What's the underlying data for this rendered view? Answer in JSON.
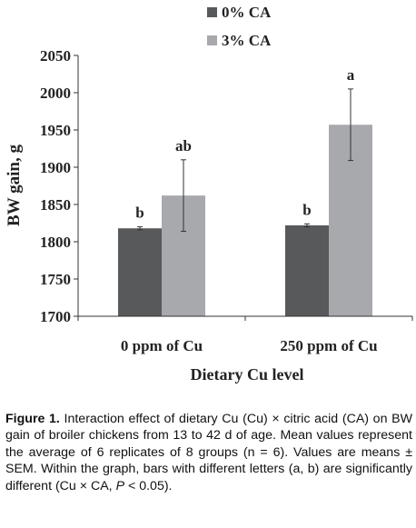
{
  "chart_data": {
    "type": "bar",
    "categories": [
      "0 ppm of Cu",
      "250 ppm of Cu"
    ],
    "series": [
      {
        "name": "0% CA",
        "color": "#58595b",
        "values": [
          1818,
          1822
        ],
        "errors": [
          2,
          2
        ],
        "letters": [
          "b",
          "b"
        ]
      },
      {
        "name": "3% CA",
        "color": "#a7a9ac",
        "values": [
          1862,
          1957
        ],
        "errors": [
          48,
          48
        ],
        "letters": [
          "ab",
          "a"
        ]
      }
    ],
    "xlabel": "Dietary Cu level",
    "ylabel": "BW gain, g",
    "ylim": [
      1700,
      2050
    ],
    "yticks": [
      1700,
      1750,
      1800,
      1850,
      1900,
      1950,
      2000,
      2050
    ],
    "legend_position": "top-center",
    "grid": false
  },
  "caption": {
    "label": "Figure 1.",
    "text_before_p": " Interaction effect of dietary Cu (Cu) × citric acid (CA) on BW gain of broiler chickens from 13 to 42 d of age. Mean values represent the average of 6 replicates of 8 groups (n = 6). Values are means ± SEM. Within the graph, bars with different letters (a, b) are significantly different (Cu × CA, ",
    "p_symbol": "P",
    "text_after_p": " < 0.05)."
  }
}
